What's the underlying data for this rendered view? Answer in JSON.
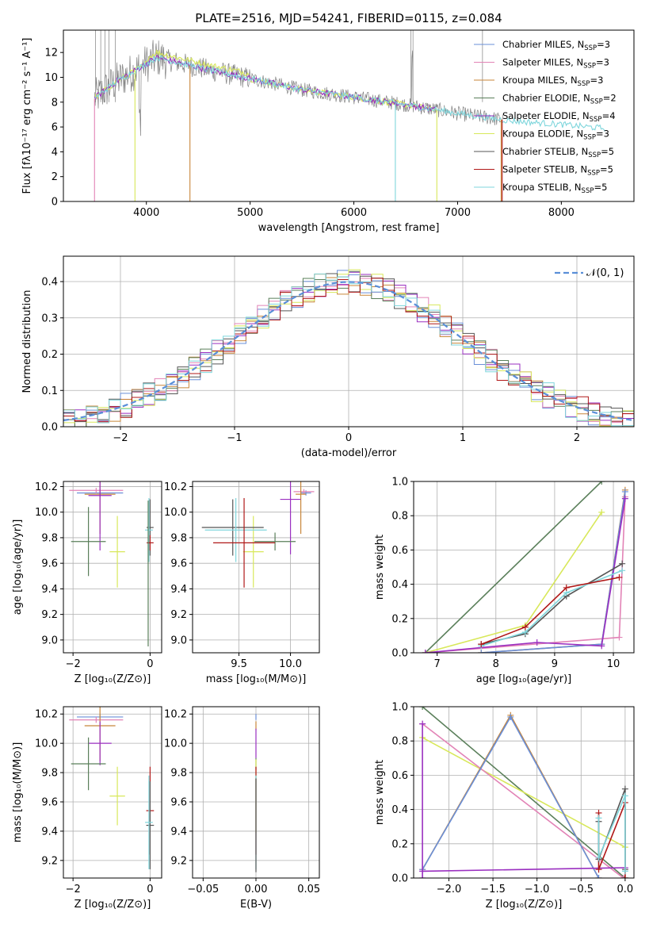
{
  "title": "PLATE=2516, MJD=54241, FIBERID=0115, z=0.084",
  "colors": {
    "Chabrier MILES": "#6a8fd8",
    "Salpeter MILES": "#e283b6",
    "Kroupa MILES": "#c8863a",
    "Chabrier ELODIE": "#5a7f5a",
    "Salpeter ELODIE": "#9a2fc0",
    "Kroupa ELODIE": "#d8e85a",
    "Chabrier STELIB": "#555555",
    "Salpeter STELIB": "#b01818",
    "Kroupa STELIB": "#7fd6dc",
    "data": "#808080",
    "normal": "#5a8fd8"
  },
  "chart_data": [
    {
      "type": "line",
      "panel": "spectrum",
      "xlabel": "wavelength [Angstrom, rest frame]",
      "ylabel": "Flux [fλ10⁻¹⁷ erg cm⁻² s⁻¹ A⁻¹]",
      "xlim": [
        3200,
        8700
      ],
      "ylim": [
        0,
        13.8
      ],
      "xticks": [
        4000,
        5000,
        6000,
        7000,
        8000
      ],
      "yticks": [
        0,
        2,
        4,
        6,
        8,
        10,
        12
      ],
      "legend_position": "top-right",
      "legend": [
        {
          "base": "Chabrier MILES, N",
          "sub": "SSP",
          "tail": "=3"
        },
        {
          "base": "Salpeter MILES, N",
          "sub": "SSP",
          "tail": "=3"
        },
        {
          "base": "Kroupa MILES, N",
          "sub": "SSP",
          "tail": "=3"
        },
        {
          "base": "Chabrier ELODIE, N",
          "sub": "SSP",
          "tail": "=2"
        },
        {
          "base": "Salpeter ELODIE, N",
          "sub": "SSP",
          "tail": "=4"
        },
        {
          "base": "Kroupa ELODIE, N",
          "sub": "SSP",
          "tail": "=3"
        },
        {
          "base": "Chabrier STELIB, N",
          "sub": "SSP",
          "tail": "=5"
        },
        {
          "base": "Salpeter STELIB, N",
          "sub": "SSP",
          "tail": "=5"
        },
        {
          "base": "Kroupa STELIB, N",
          "sub": "SSP",
          "tail": "=5"
        }
      ],
      "continuum": {
        "x": [
          3500,
          3700,
          3900,
          4100,
          4300,
          4600,
          5000,
          5500,
          6000,
          6500,
          7000,
          7500,
          8000,
          8400
        ],
        "y": [
          8.3,
          9.6,
          10.6,
          11.6,
          11.2,
          10.6,
          9.9,
          9.0,
          8.4,
          7.8,
          7.1,
          6.5,
          6.2,
          5.9
        ]
      }
    },
    {
      "type": "line",
      "panel": "residual_histogram",
      "xlabel": "(data-model)/error",
      "ylabel": "Normed distribution",
      "xlim": [
        -2.5,
        2.5
      ],
      "ylim": [
        0,
        0.47
      ],
      "xticks": [
        -2,
        -1,
        0,
        1,
        2
      ],
      "yticks": [
        0.0,
        0.1,
        0.2,
        0.3,
        0.4
      ],
      "legend": "𝒩(0, 1)",
      "legend_position": "top-right"
    },
    {
      "type": "scatter",
      "panel": "age_vs_Z",
      "xlabel": "Z [log₁₀(Z/Z⊙)]",
      "ylabel": "age  [log₁₀(age/yr)]",
      "xlim": [
        -2.25,
        0.3
      ],
      "ylim": [
        8.9,
        10.24
      ],
      "xticks": [
        -2,
        0
      ],
      "yticks": [
        9.0,
        9.2,
        9.4,
        9.6,
        9.8,
        10.0,
        10.2
      ],
      "points": [
        {
          "series": "Chabrier MILES",
          "x": -1.3,
          "y": 10.15,
          "xerr": 0.6,
          "yerr": 0.03
        },
        {
          "series": "Salpeter MILES",
          "x": -1.4,
          "y": 10.17,
          "xerr": 0.7,
          "yerr": 0.02
        },
        {
          "series": "Kroupa MILES",
          "x": -1.3,
          "y": 10.14,
          "xerr": 0.4,
          "yerr": 0.31
        },
        {
          "series": "Salpeter ELODIE",
          "x": -1.3,
          "y": 10.13,
          "xerr": 0.3,
          "yerr": 0.43
        },
        {
          "series": "Kroupa ELODIE",
          "x": -0.85,
          "y": 9.69,
          "xerr": 0.2,
          "yerr": 0.28
        },
        {
          "series": "Chabrier ELODIE",
          "x": -1.6,
          "y": 9.77,
          "xerr": 0.45,
          "yerr": 0.27
        },
        {
          "series": "Chabrier STELIB",
          "x": 0.0,
          "y": 9.88,
          "xerr": 0.09,
          "yerr": 0.22
        },
        {
          "series": "Kroupa STELIB",
          "x": -0.03,
          "y": 9.86,
          "xerr": 0.1,
          "yerr": 0.25
        },
        {
          "series": "Salpeter STELIB",
          "x": 0.0,
          "y": 9.76,
          "xerr": 0.09,
          "yerr": 0.06
        },
        {
          "series": "Chabrier ELODIE",
          "x": -0.05,
          "y": 9.52,
          "xerr": 0.01,
          "yerr": 0.57
        }
      ]
    },
    {
      "type": "scatter",
      "panel": "age_vs_mass",
      "xlabel": "mass [log₁₀(M/M⊙)]",
      "ylabel": "",
      "xlim": [
        9.05,
        10.28
      ],
      "ylim": [
        8.9,
        10.24
      ],
      "xticks": [
        9.5,
        10.0
      ],
      "yticks": [
        9.0,
        9.2,
        9.4,
        9.6,
        9.8,
        10.0,
        10.2
      ],
      "points": [
        {
          "series": "Chabrier MILES",
          "x": 10.15,
          "y": 10.15,
          "xerr": 0.05,
          "yerr": 0.02
        },
        {
          "series": "Salpeter MILES",
          "x": 10.13,
          "y": 10.16,
          "xerr": 0.1,
          "yerr": 0.02
        },
        {
          "series": "Kroupa MILES",
          "x": 10.1,
          "y": 10.14,
          "xerr": 0.05,
          "yerr": 0.31
        },
        {
          "series": "Salpeter ELODIE",
          "x": 10.0,
          "y": 10.1,
          "xerr": 0.1,
          "yerr": 0.43
        },
        {
          "series": "Chabrier ELODIE",
          "x": 9.85,
          "y": 9.77,
          "xerr": 0.2,
          "yerr": 0.07
        },
        {
          "series": "Kroupa ELODIE",
          "x": 9.64,
          "y": 9.69,
          "xerr": 0.1,
          "yerr": 0.28
        },
        {
          "series": "Chabrier STELIB",
          "x": 9.44,
          "y": 9.88,
          "xerr": 0.3,
          "yerr": 0.22
        },
        {
          "series": "Kroupa STELIB",
          "x": 9.47,
          "y": 9.86,
          "xerr": 0.3,
          "yerr": 0.25
        },
        {
          "series": "Salpeter STELIB",
          "x": 9.55,
          "y": 9.76,
          "xerr": 0.3,
          "yerr": 0.35
        }
      ]
    },
    {
      "type": "line",
      "panel": "mass_weight_vs_age",
      "xlabel": "age  [log₁₀(age/yr)]",
      "ylabel": "mass weight",
      "xlim": [
        6.6,
        10.35
      ],
      "ylim": [
        0,
        1.0
      ],
      "xticks": [
        7,
        8,
        9,
        10
      ],
      "yticks": [
        0.0,
        0.2,
        0.4,
        0.6,
        0.8,
        1.0
      ],
      "series": [
        {
          "name": "Chabrier ELODIE",
          "x": [
            6.8,
            9.8
          ],
          "y": [
            0.0,
            1.0
          ]
        },
        {
          "name": "Kroupa ELODIE",
          "x": [
            6.8,
            8.5,
            9.8
          ],
          "y": [
            0.0,
            0.16,
            0.82
          ]
        },
        {
          "name": "Salpeter MILES",
          "x": [
            6.8,
            10.1,
            10.2
          ],
          "y": [
            0.0,
            0.09,
            0.91
          ]
        },
        {
          "name": "Kroupa MILES",
          "x": [
            7.75,
            9.8,
            10.2
          ],
          "y": [
            0.0,
            0.05,
            0.95
          ]
        },
        {
          "name": "Chabrier MILES",
          "x": [
            7.75,
            9.8,
            10.2
          ],
          "y": [
            0.0,
            0.05,
            0.94
          ]
        },
        {
          "name": "Salpeter ELODIE",
          "x": [
            6.8,
            8.7,
            9.8,
            10.2
          ],
          "y": [
            0.0,
            0.06,
            0.04,
            0.9
          ]
        },
        {
          "name": "Chabrier STELIB",
          "x": [
            7.75,
            8.5,
            9.2,
            10.15
          ],
          "y": [
            0.05,
            0.11,
            0.33,
            0.52
          ]
        },
        {
          "name": "Kroupa STELIB",
          "x": [
            7.75,
            8.5,
            9.2,
            10.15
          ],
          "y": [
            0.04,
            0.12,
            0.35,
            0.48
          ]
        },
        {
          "name": "Salpeter STELIB",
          "x": [
            7.75,
            8.5,
            9.2,
            10.1
          ],
          "y": [
            0.05,
            0.15,
            0.38,
            0.44
          ]
        }
      ]
    },
    {
      "type": "scatter",
      "panel": "mass_vs_Z",
      "xlabel": "Z [log₁₀(Z/Z⊙)]",
      "ylabel": "mass [log₁₀(M/M⊙)]",
      "xlim": [
        -2.25,
        0.3
      ],
      "ylim": [
        9.08,
        10.25
      ],
      "xticks": [
        -2,
        0
      ],
      "yticks": [
        9.2,
        9.4,
        9.6,
        9.8,
        10.0,
        10.2
      ],
      "points": [
        {
          "series": "Chabrier MILES",
          "x": -1.3,
          "y": 10.18,
          "xerr": 0.6,
          "yerr": 0.02
        },
        {
          "series": "Salpeter MILES",
          "x": -1.4,
          "y": 10.16,
          "xerr": 0.7,
          "yerr": 0.02
        },
        {
          "series": "Kroupa MILES",
          "x": -1.3,
          "y": 10.12,
          "xerr": 0.4,
          "yerr": 0.24
        },
        {
          "series": "Salpeter ELODIE",
          "x": -1.3,
          "y": 10.0,
          "xerr": 0.3,
          "yerr": 0.15
        },
        {
          "series": "Chabrier ELODIE",
          "x": -1.6,
          "y": 9.86,
          "xerr": 0.45,
          "yerr": 0.18
        },
        {
          "series": "Kroupa ELODIE",
          "x": -0.85,
          "y": 9.64,
          "xerr": 0.2,
          "yerr": 0.2
        },
        {
          "series": "Salpeter STELIB",
          "x": 0.0,
          "y": 9.54,
          "xerr": 0.1,
          "yerr": 0.3
        },
        {
          "series": "Chabrier STELIB",
          "x": 0.0,
          "y": 9.44,
          "xerr": 0.1,
          "yerr": 0.3
        },
        {
          "series": "Kroupa STELIB",
          "x": -0.03,
          "y": 9.46,
          "xerr": 0.1,
          "yerr": 0.32
        }
      ]
    },
    {
      "type": "scatter",
      "panel": "mass_vs_EBV",
      "xlabel": "E(B-V)",
      "ylabel": "",
      "xlim": [
        -0.06,
        0.06
      ],
      "ylim": [
        9.08,
        10.25
      ],
      "xticks": [
        -0.05,
        0.0,
        0.05
      ],
      "yticks": [
        9.2,
        9.4,
        9.6,
        9.8,
        10.0,
        10.2
      ],
      "points": [
        {
          "series": "Chabrier MILES",
          "x": 0.0,
          "y": 10.18,
          "xerr": 0,
          "yerr": 0.02
        },
        {
          "series": "Kroupa MILES",
          "x": 0.0,
          "y": 10.12,
          "xerr": 0,
          "yerr": 0.03
        },
        {
          "series": "Salpeter ELODIE",
          "x": 0.0,
          "y": 10.0,
          "xerr": 0,
          "yerr": 0.1
        },
        {
          "series": "Chabrier ELODIE",
          "x": 0.0,
          "y": 9.86,
          "xerr": 0,
          "yerr": 0.04
        },
        {
          "series": "Kroupa ELODIE",
          "x": 0.0,
          "y": 9.64,
          "xerr": 0,
          "yerr": 0.25
        },
        {
          "series": "Salpeter STELIB",
          "x": 0.0,
          "y": 9.54,
          "xerr": 0,
          "yerr": 0.3
        },
        {
          "series": "Kroupa STELIB",
          "x": 0.0,
          "y": 9.46,
          "xerr": 0,
          "yerr": 0.32
        },
        {
          "series": "Chabrier STELIB",
          "x": 0.0,
          "y": 9.44,
          "xerr": 0,
          "yerr": 0.32
        }
      ]
    },
    {
      "type": "line",
      "panel": "mass_weight_vs_Z",
      "xlabel": "Z [log₁₀(Z/Z⊙)]",
      "ylabel": "mass weight",
      "xlim": [
        -2.4,
        0.1
      ],
      "ylim": [
        0,
        1.0
      ],
      "xticks": [
        -2.0,
        -1.5,
        -1.0,
        -0.5,
        0.0
      ],
      "yticks": [
        0.0,
        0.2,
        0.4,
        0.6,
        0.8,
        1.0
      ],
      "series": [
        {
          "name": "Chabrier ELODIE",
          "x": [
            -2.3,
            0.0
          ],
          "y": [
            1.0,
            0.0
          ]
        },
        {
          "name": "Kroupa ELODIE",
          "x": [
            -2.3,
            0.0
          ],
          "y": [
            0.82,
            0.18
          ]
        },
        {
          "name": "Salpeter MILES",
          "x": [
            -2.3,
            -0.02
          ],
          "y": [
            0.9,
            0.0
          ]
        },
        {
          "name": "Kroupa MILES",
          "x": [
            -2.3,
            -1.3,
            -0.3
          ],
          "y": [
            0.05,
            0.95,
            0.0
          ]
        },
        {
          "name": "Chabrier MILES",
          "x": [
            -2.3,
            -1.3,
            -0.3
          ],
          "y": [
            0.05,
            0.94,
            0.0
          ]
        },
        {
          "name": "Salpeter ELODIE",
          "x": [
            -2.3,
            -2.3,
            -2.3,
            0.0
          ],
          "y": [
            0.9,
            0.0,
            0.04,
            0.06
          ]
        },
        {
          "name": "Salpeter STELIB",
          "x": [
            -0.3,
            -0.3,
            0.0,
            0.0
          ],
          "y": [
            0.38,
            0.05,
            0.44,
            0.0
          ]
        },
        {
          "name": "Chabrier STELIB",
          "x": [
            -0.3,
            -0.3,
            0.0,
            0.0
          ],
          "y": [
            0.33,
            0.11,
            0.52,
            0.05
          ]
        },
        {
          "name": "Kroupa STELIB",
          "x": [
            -0.3,
            -0.3,
            0.0,
            0.0
          ],
          "y": [
            0.35,
            0.12,
            0.48,
            0.04
          ]
        }
      ]
    }
  ]
}
